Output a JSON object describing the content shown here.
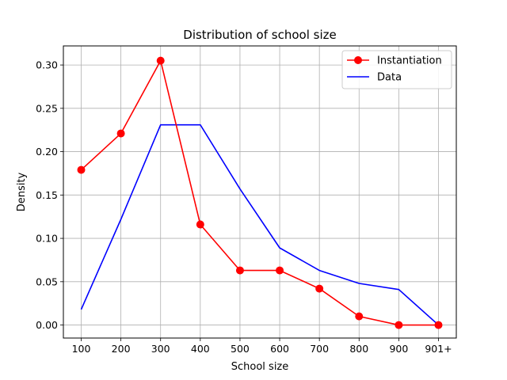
{
  "chart_data": {
    "type": "line",
    "title": "Distribution of school size",
    "xlabel": "School size",
    "ylabel": "Density",
    "categories": [
      "100",
      "200",
      "300",
      "400",
      "500",
      "600",
      "700",
      "800",
      "900",
      "901+"
    ],
    "yticks": [
      "0.00",
      "0.05",
      "0.10",
      "0.15",
      "0.20",
      "0.25",
      "0.30"
    ],
    "ytick_values": [
      0.0,
      0.05,
      0.1,
      0.15,
      0.2,
      0.25,
      0.3
    ],
    "ylim": [
      -0.015,
      0.322
    ],
    "grid": true,
    "legend_position": "top-right",
    "series": [
      {
        "name": "Instantiation",
        "color": "#ff0000",
        "marker": "circle",
        "values": [
          0.179,
          0.221,
          0.305,
          0.116,
          0.063,
          0.063,
          0.042,
          0.01,
          0.0,
          0.0
        ]
      },
      {
        "name": "Data",
        "color": "#0000ff",
        "marker": "none",
        "values": [
          0.018,
          0.122,
          0.231,
          0.231,
          0.157,
          0.089,
          0.063,
          0.048,
          0.041,
          0.0
        ]
      }
    ]
  }
}
